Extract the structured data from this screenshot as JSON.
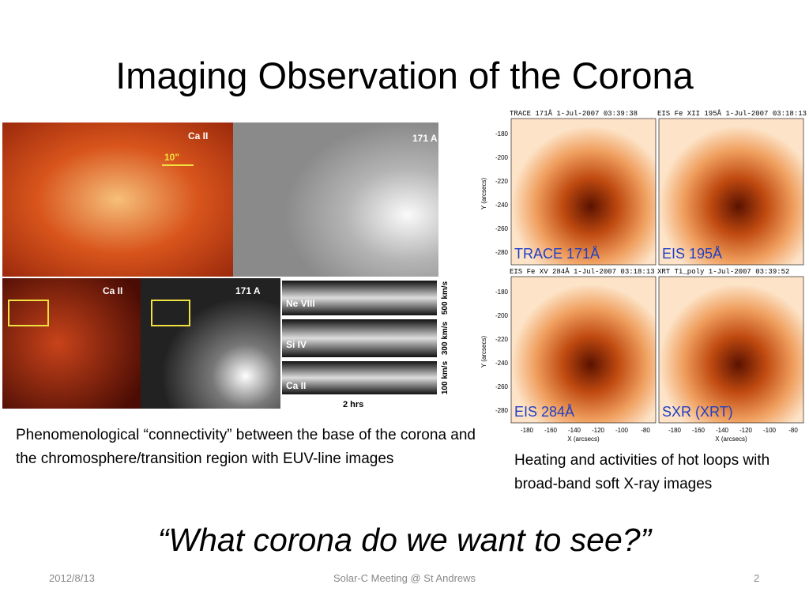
{
  "title": "Imaging Observation of the Corona",
  "left_figure": {
    "top_left_label": "Ca II",
    "scale_label": "10\"",
    "top_right_label": "171 A",
    "bottom_left_label": "Ca II",
    "bottom_mid_label": "171 A",
    "spectra": [
      {
        "line": "Ne VIII",
        "speed": "500 km/s"
      },
      {
        "line": "Si IV",
        "speed": "300 km/s"
      },
      {
        "line": "Ca II",
        "speed": "100 km/s"
      }
    ],
    "time_label": "2 hrs"
  },
  "left_caption": "Phenomenological “connectivity” between the base of the corona and the chromosphere/transition region with EUV-line images",
  "right_figure": {
    "panels": [
      {
        "header": "TRACE 171Å 1-Jul-2007 03:39:38",
        "label": "TRACE 171Å"
      },
      {
        "header": "EIS Fe XII 195Å 1-Jul-2007 03:18:13",
        "label": "EIS 195Å"
      },
      {
        "header": "EIS Fe XV 284Å 1-Jul-2007 03:18:13",
        "label": "EIS 284Å"
      },
      {
        "header": "XRT Ti_poly 1-Jul-2007 03:39:52",
        "label": "SXR (XRT)"
      }
    ],
    "y_ticks": [
      "-180",
      "-200",
      "-220",
      "-240",
      "-260",
      "-280"
    ],
    "y_label": "Y (arcsecs)",
    "x_ticks": [
      "-180",
      "-160",
      "-140",
      "-120",
      "-100",
      "-80"
    ],
    "x_label": "X (arcsecs)"
  },
  "right_caption": "Heating and activities of hot loops with broad-band soft X-ray images",
  "question": "“What corona do we want to see?”",
  "footer": {
    "date": "2012/8/13",
    "center": "Solar-C Meeting @ St Andrews",
    "page": "2"
  }
}
